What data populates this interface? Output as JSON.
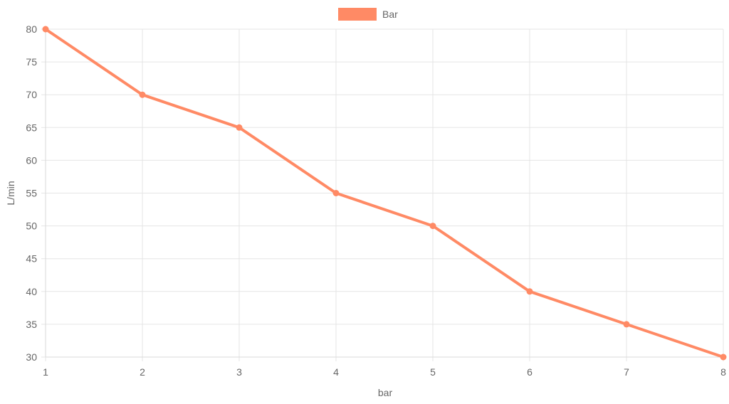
{
  "chart_data": {
    "type": "line",
    "x": [
      1,
      2,
      3,
      4,
      5,
      6,
      7,
      8
    ],
    "series": [
      {
        "name": "Bar",
        "values": [
          80,
          70,
          65,
          55,
          50,
          40,
          35,
          30
        ],
        "color": "#ff8a65"
      }
    ],
    "xlabel": "bar",
    "ylabel": "L/min",
    "xlim": [
      1,
      8
    ],
    "ylim": [
      30,
      80
    ],
    "y_ticks": [
      30,
      35,
      40,
      45,
      50,
      55,
      60,
      65,
      70,
      75,
      80
    ],
    "x_ticks": [
      1,
      2,
      3,
      4,
      5,
      6,
      7,
      8
    ],
    "grid": true,
    "legend_position": "top-center"
  }
}
